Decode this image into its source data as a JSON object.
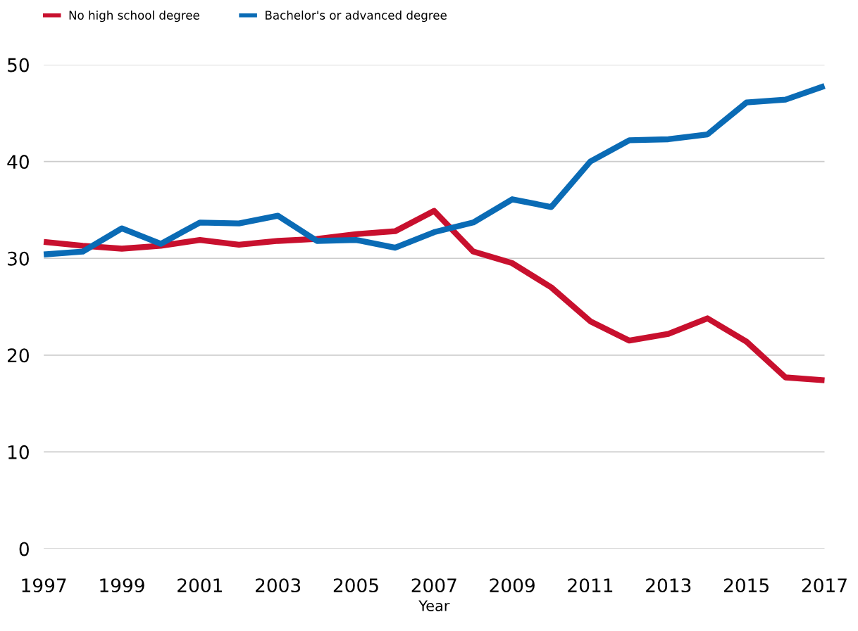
{
  "chart_data": {
    "type": "line",
    "xlabel": "Year",
    "x": [
      1997,
      1998,
      1999,
      2000,
      2001,
      2002,
      2003,
      2004,
      2005,
      2006,
      2007,
      2008,
      2009,
      2010,
      2011,
      2012,
      2013,
      2014,
      2015,
      2016,
      2017
    ],
    "series": [
      {
        "name": "No high school degree",
        "color": "#c8102e",
        "values": [
          31.7,
          31.3,
          31.0,
          31.3,
          31.9,
          31.4,
          31.8,
          32.0,
          32.5,
          32.8,
          34.9,
          30.7,
          29.5,
          27.0,
          23.5,
          21.5,
          22.2,
          23.8,
          21.4,
          17.7,
          17.4
        ]
      },
      {
        "name": "Bachelor's or advanced degree",
        "color": "#0a6bb5",
        "values": [
          30.4,
          30.7,
          33.1,
          31.5,
          33.7,
          33.6,
          34.4,
          31.8,
          31.9,
          31.1,
          32.7,
          33.7,
          36.1,
          35.3,
          40.0,
          42.2,
          42.3,
          42.8,
          46.1,
          46.4,
          47.8
        ]
      }
    ],
    "xlim": [
      1997,
      2017
    ],
    "xticks": [
      1997,
      1999,
      2001,
      2003,
      2005,
      2007,
      2009,
      2011,
      2013,
      2015,
      2017
    ],
    "ylim": [
      0,
      50
    ],
    "yticks": [
      0,
      10,
      20,
      30,
      40,
      50
    ],
    "grid": "y",
    "legend": "top left",
    "marker": "none",
    "line_style": "solid"
  }
}
